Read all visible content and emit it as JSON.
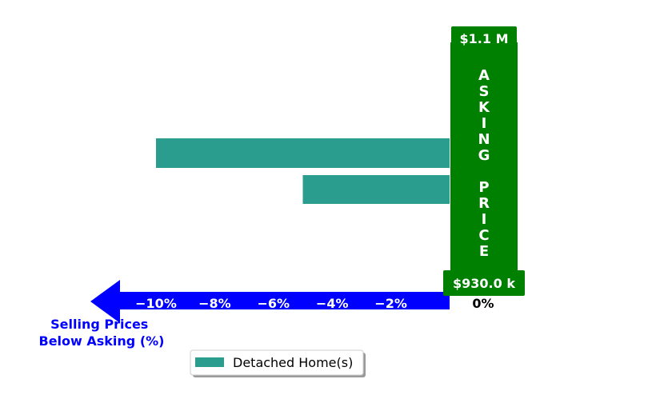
{
  "chart_data": {
    "type": "bar",
    "orientation": "horizontal",
    "series": [
      {
        "name": "Detached Home(s)",
        "values": [
          -10,
          -5
        ],
        "color": "#2a9d8f"
      }
    ],
    "xlabel": "Selling Prices\nBelow Asking (%)",
    "x_ticks": [
      "−10%",
      "−8%",
      "−6%",
      "−4%",
      "−2%",
      "0%"
    ],
    "x_tick_values": [
      -10,
      -8,
      -6,
      -4,
      -2,
      0
    ],
    "xlim": [
      -10.5,
      0
    ],
    "arrow_color": "#0000ff",
    "asking_price_bar": {
      "label": "ASKING PRICE",
      "top_value": "$1.1 M",
      "bottom_value": "$930.0 k",
      "color": "#008000"
    },
    "legend": {
      "entries": [
        "Detached Home(s)"
      ],
      "position": "bottom-center"
    },
    "grid": false
  }
}
